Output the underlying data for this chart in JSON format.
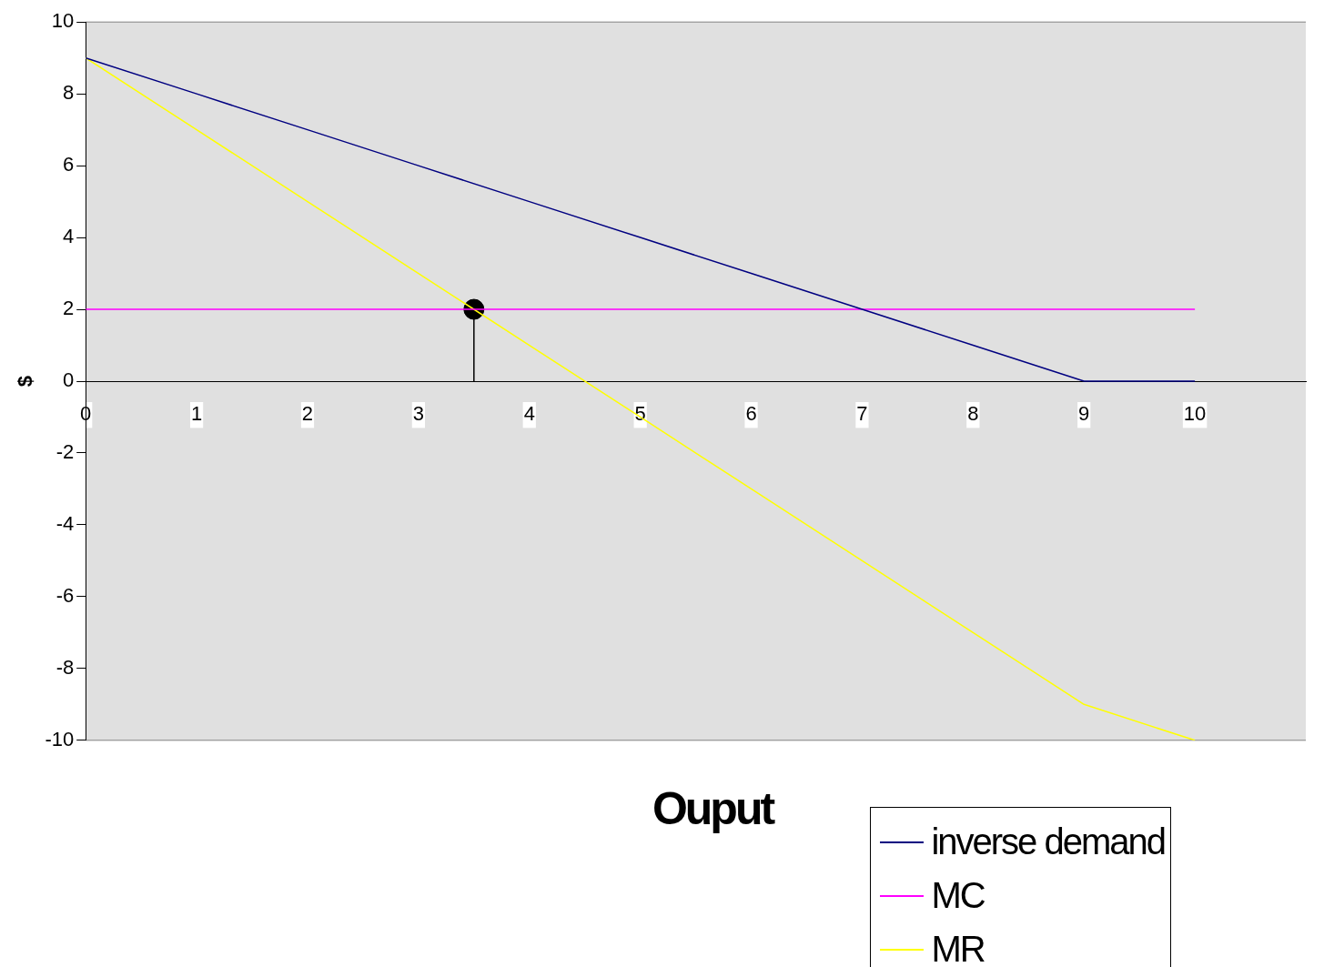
{
  "chart_data": {
    "type": "line",
    "xlabel": "Ouput",
    "ylabel": "$",
    "x": [
      0,
      1,
      2,
      3,
      4,
      5,
      6,
      7,
      8,
      9,
      10
    ],
    "series": [
      {
        "name": "inverse demand",
        "color": "#000080",
        "values": [
          9,
          8,
          7,
          6,
          5,
          4,
          3,
          2,
          1,
          0,
          0
        ]
      },
      {
        "name": "MC",
        "color": "#ff00ff",
        "values": [
          2,
          2,
          2,
          2,
          2,
          2,
          2,
          2,
          2,
          2,
          2
        ]
      },
      {
        "name": "MR",
        "color": "#ffff00",
        "values": [
          9,
          7,
          5,
          3,
          1,
          -1,
          -3,
          -5,
          -7,
          -9,
          -10
        ]
      },
      {
        "type": "lollipop",
        "color": "#000000",
        "marker": "circle",
        "x": [
          3.5
        ],
        "values": [
          2
        ]
      }
    ],
    "xlim": [
      0,
      11
    ],
    "xticks": [
      0,
      1,
      2,
      3,
      4,
      5,
      6,
      7,
      8,
      9,
      10
    ],
    "ylim": [
      -10,
      10
    ],
    "yticks": [
      -10,
      -8,
      -6,
      -4,
      -2,
      0,
      2,
      4,
      6,
      8,
      10
    ],
    "grid": false,
    "legend": "bottom right"
  }
}
